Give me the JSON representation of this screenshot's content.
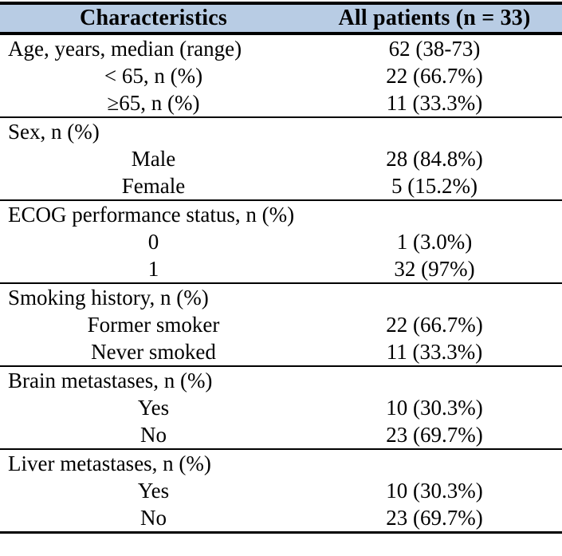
{
  "page": {
    "background_color": "#ffffff",
    "text_color": "#000000"
  },
  "table": {
    "accent_color": "#b8cce4",
    "rule_color": "#000000",
    "header": {
      "characteristics": "Characteristics",
      "all_patients": "All patients (n = 33)"
    },
    "sections": [
      {
        "rows": [
          {
            "label": "Age, years, median (range)",
            "value": "62 (38-73)"
          },
          {
            "label": "< 65, n (%)",
            "value": "22 (66.7%)"
          },
          {
            "label": "≥65, n (%)",
            "value": "11 (33.3%)"
          }
        ]
      },
      {
        "rows": [
          {
            "label": "Sex, n (%)",
            "value": ""
          },
          {
            "label": "Male",
            "value": "28 (84.8%)"
          },
          {
            "label": "Female",
            "value": "5 (15.2%)"
          }
        ]
      },
      {
        "rows": [
          {
            "label": "ECOG performance status, n (%)",
            "value": ""
          },
          {
            "label": "0",
            "value": "1 (3.0%)"
          },
          {
            "label": "1",
            "value": "32 (97%)"
          }
        ]
      },
      {
        "rows": [
          {
            "label": "Smoking history, n (%)",
            "value": ""
          },
          {
            "label": "Former smoker",
            "value": "22 (66.7%)"
          },
          {
            "label": "Never smoked",
            "value": "11 (33.3%)"
          }
        ]
      },
      {
        "rows": [
          {
            "label": "Brain metastases, n (%)",
            "value": ""
          },
          {
            "label": "Yes",
            "value": "10 (30.3%)"
          },
          {
            "label": "No",
            "value": "23 (69.7%)"
          }
        ]
      },
      {
        "rows": [
          {
            "label": "Liver metastases, n (%)",
            "value": ""
          },
          {
            "label": "Yes",
            "value": "10 (30.3%)"
          },
          {
            "label": "No",
            "value": "23 (69.7%)"
          }
        ]
      }
    ]
  }
}
